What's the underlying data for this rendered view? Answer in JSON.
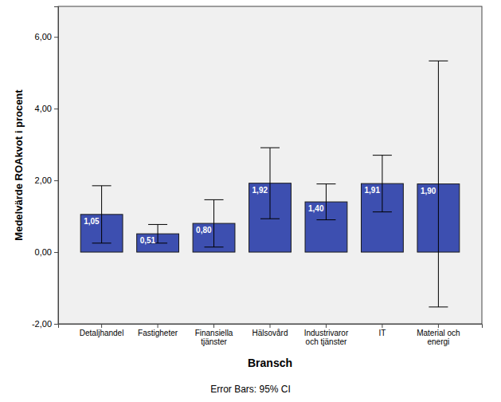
{
  "chart_data": {
    "type": "bar",
    "categories": [
      "Detaljhandel",
      "Fastigheter",
      "Finansiella tjänster",
      "Hälsovård",
      "Industrivaror och tjänster",
      "IT",
      "Material och energi"
    ],
    "values": [
      1.05,
      0.51,
      0.8,
      1.92,
      1.4,
      1.91,
      1.9
    ],
    "value_labels": [
      "1,05",
      "0,51",
      "0,80",
      "1,92",
      "1,40",
      "1,91",
      "1,90"
    ],
    "ci_lower": [
      0.25,
      0.25,
      0.14,
      0.93,
      0.9,
      1.12,
      -1.53
    ],
    "ci_upper": [
      1.85,
      0.77,
      1.46,
      2.91,
      1.9,
      2.7,
      5.33
    ],
    "color": "#3d4fb0",
    "data_labels": true,
    "grid": false,
    "x_label": "Bransch",
    "y_label": "Medelvärde ROAkvot i procent",
    "annotations": [
      "Error Bars: 95% CI"
    ],
    "ylim": [
      -2,
      6.85
    ],
    "yticks": [
      {
        "value": -2,
        "label": "-2,00"
      },
      {
        "value": 0,
        "label": "0,00"
      },
      {
        "value": 2,
        "label": "2,00"
      },
      {
        "value": 4,
        "label": "4,00"
      },
      {
        "value": 6,
        "label": "6,00"
      }
    ]
  }
}
